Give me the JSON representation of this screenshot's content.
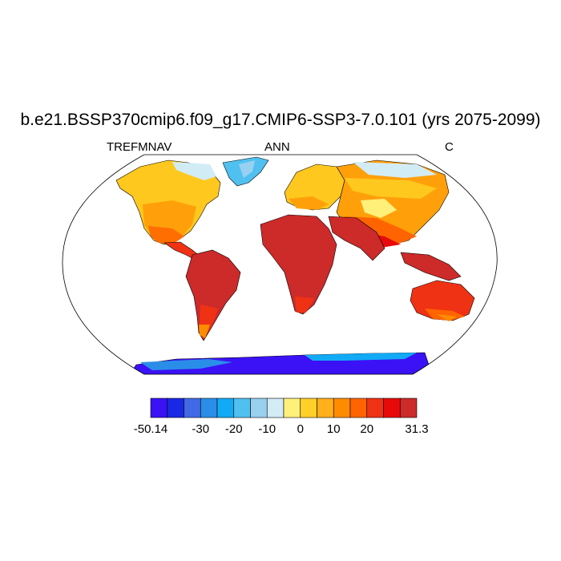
{
  "title": "b.e21.BSSP370cmip6.f09_g17.CMIP6-SSP3-7.0.101 (yrs 2075-2099)",
  "left_label": "TREFMNAV",
  "center_label": "ANN",
  "right_label": "C",
  "colorbar": {
    "colors": [
      "#3a12f5",
      "#1a28e6",
      "#4169e6",
      "#2a8ee8",
      "#12aaf5",
      "#50c0f0",
      "#98d0f0",
      "#d2ecf6",
      "#fff07a",
      "#ffd02a",
      "#ffb01a",
      "#ff8c00",
      "#ff6400",
      "#f03214",
      "#e80a0a",
      "#cd2a2a"
    ],
    "labels": [
      "-50.14",
      "-30",
      "-20",
      "-10",
      "0",
      "10",
      "20",
      "31.3"
    ],
    "label_boundaries": [
      0,
      3,
      5,
      7,
      9,
      11,
      13,
      16
    ]
  }
}
